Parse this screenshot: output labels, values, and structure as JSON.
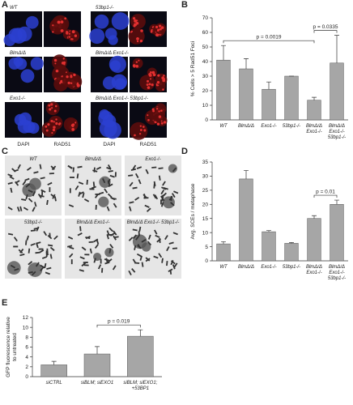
{
  "panel_labels": [
    "A",
    "B",
    "C",
    "D",
    "E"
  ],
  "panel_a": {
    "labels": [
      "WT",
      "53bp1-/-",
      "BlmΔ/Δ",
      "BlmΔ/Δ Exo1-/-",
      "Exo1-/-",
      "BlmΔ/Δ Exo1-/- 53bp1-/-"
    ],
    "channels": [
      "DAPI",
      "RAD51"
    ]
  },
  "panel_c": {
    "labels": [
      "WT",
      "BlmΔ/Δ",
      "Exo1-/-",
      "53bp1-/-",
      "BlmΔ/Δ Exo1-/-",
      "BlmΔ/Δ Exo1-/- 53bp1-/-"
    ]
  },
  "chart_data": [
    {
      "type": "bar",
      "y_label": "% Cells > 5 Rad51 Foci",
      "categories": [
        [
          "WT"
        ],
        [
          "BlmΔ/Δ"
        ],
        [
          "Exo1-/-"
        ],
        [
          "53bp1-/-"
        ],
        [
          "BlmΔ/Δ",
          "Exo1-/-"
        ],
        [
          "BlmΔ/Δ",
          "Exo1-/-",
          "53bp1-/-"
        ]
      ],
      "series": [
        {
          "color": "#a6a6a6",
          "values": [
            41,
            35,
            21,
            30,
            13.5,
            39
          ],
          "errors": [
            10,
            7,
            5,
            0,
            2,
            19
          ]
        }
      ],
      "ylim": [
        0,
        70
      ],
      "yticks": [
        0,
        10,
        20,
        30,
        40,
        50,
        60,
        70
      ],
      "annotations": [
        {
          "text": "p = 0.0019"
        },
        {
          "text": "p = 0.0335"
        }
      ]
    },
    {
      "type": "bar",
      "y_label": "Avg. SCEs / metaphase",
      "categories": [
        [
          "WT"
        ],
        [
          "BlmΔ/Δ"
        ],
        [
          "Exo1-/-"
        ],
        [
          "53bp1-/-"
        ],
        [
          "BlmΔ/Δ",
          "Exo1-/-"
        ],
        [
          "BlmΔ/Δ",
          "Exo1-/-",
          "53bp1-/-"
        ]
      ],
      "series": [
        {
          "color": "#a6a6a6",
          "values": [
            6,
            29,
            10.3,
            6.2,
            15,
            20
          ],
          "errors": [
            0.8,
            3,
            0.4,
            0.3,
            1,
            1.5
          ]
        }
      ],
      "ylim": [
        0,
        35
      ],
      "yticks": [
        0,
        5,
        10,
        15,
        20,
        25,
        30,
        35
      ],
      "annotations": [
        {
          "text": "p = 0.01"
        }
      ]
    },
    {
      "type": "bar",
      "y_label": [
        "GFP fluorescence relative",
        "to untreated"
      ],
      "categories": [
        [
          "siCTRL"
        ],
        [
          "siBLM; siEXO1"
        ],
        [
          "siBLM; siEXO1;",
          "+53BP1"
        ]
      ],
      "series": [
        {
          "color": "#a6a6a6",
          "values": [
            2.4,
            4.6,
            8.2
          ],
          "errors": [
            0.7,
            1.5,
            1.3
          ]
        }
      ],
      "ylim": [
        0,
        12
      ],
      "yticks": [
        0,
        2,
        4,
        6,
        8,
        10,
        12
      ],
      "annotations": [
        {
          "text": "p = 0.019"
        }
      ]
    }
  ]
}
